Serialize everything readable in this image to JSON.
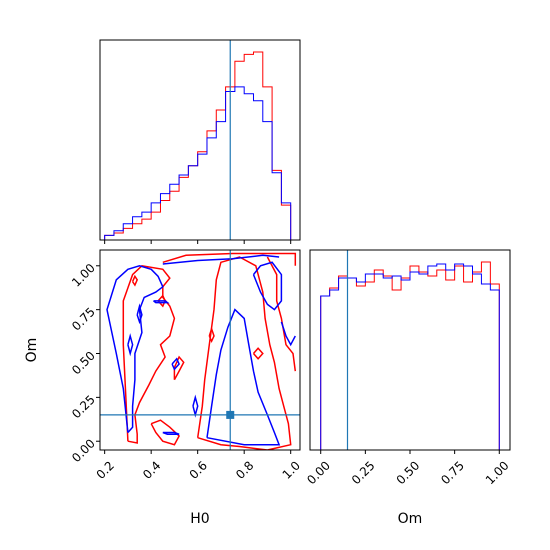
{
  "chart_data": {
    "type": "corner",
    "parameters": [
      "H0",
      "Om"
    ],
    "truths": {
      "H0": 0.74,
      "Om": 0.15
    },
    "colors": {
      "series_a": "#ff0000",
      "series_b": "#0000ff",
      "truth": "#1f77b4",
      "axes": "#000000"
    },
    "series": [
      {
        "color": "#ff0000",
        "hist_H0": {
          "edges": [
            0.2,
            0.24,
            0.28,
            0.32,
            0.36,
            0.4,
            0.44,
            0.48,
            0.52,
            0.56,
            0.6,
            0.64,
            0.68,
            0.72,
            0.76,
            0.8,
            0.84,
            0.88,
            0.92,
            0.96,
            1.0
          ],
          "counts": [
            2,
            3,
            5,
            7,
            9,
            12,
            17,
            21,
            27,
            32,
            38,
            47,
            56,
            66,
            77,
            80,
            81,
            66,
            30,
            15
          ]
        },
        "hist_Om": {
          "edges": [
            0.0,
            0.05,
            0.1,
            0.15,
            0.2,
            0.25,
            0.3,
            0.35,
            0.4,
            0.45,
            0.5,
            0.55,
            0.6,
            0.65,
            0.7,
            0.75,
            0.8,
            0.85,
            0.9,
            0.95,
            1.0
          ],
          "counts": [
            77,
            81,
            87,
            86,
            82,
            84,
            90,
            87,
            80,
            86,
            92,
            89,
            87,
            90,
            85,
            92,
            84,
            89,
            94,
            83
          ]
        }
      },
      {
        "color": "#0000ff",
        "hist_H0": {
          "edges": [
            0.2,
            0.24,
            0.28,
            0.32,
            0.36,
            0.4,
            0.44,
            0.48,
            0.52,
            0.56,
            0.6,
            0.64,
            0.68,
            0.72,
            0.76,
            0.8,
            0.84,
            0.88,
            0.92,
            0.96,
            1.0
          ],
          "counts": [
            2,
            4,
            7,
            10,
            12,
            16,
            20,
            24,
            28,
            32,
            37,
            44,
            51,
            64,
            66,
            63,
            60,
            51,
            29,
            16
          ]
        },
        "hist_Om": {
          "edges": [
            0.0,
            0.05,
            0.1,
            0.15,
            0.2,
            0.25,
            0.3,
            0.35,
            0.4,
            0.45,
            0.5,
            0.55,
            0.6,
            0.65,
            0.7,
            0.75,
            0.8,
            0.85,
            0.9,
            0.95,
            1.0
          ],
          "counts": [
            77,
            80,
            86,
            86,
            84,
            88,
            88,
            86,
            87,
            85,
            89,
            88,
            92,
            93,
            90,
            93,
            92,
            88,
            83,
            80
          ]
        }
      }
    ],
    "axes": {
      "H0": {
        "label": "H0",
        "range": [
          0.18,
          1.04
        ],
        "ticks": [
          0.2,
          0.4,
          0.6,
          0.8,
          1.0
        ],
        "tick_labels": [
          "0.2",
          "0.4",
          "0.6",
          "0.8",
          "1.0"
        ]
      },
      "Om": {
        "label": "Om",
        "range": [
          -0.05,
          1.09
        ],
        "ticks": [
          0.0,
          0.25,
          0.5,
          0.75,
          1.0
        ],
        "tick_labels": [
          "0.00",
          "0.25",
          "0.50",
          "0.75",
          "1.00"
        ]
      },
      "Om_hist_x": {
        "range": [
          -0.06,
          1.06
        ]
      }
    },
    "contours": [
      {
        "series": 0,
        "points": [
          [
            0.3,
            0.0
          ],
          [
            0.29,
            0.28
          ],
          [
            0.28,
            0.55
          ],
          [
            0.28,
            0.8
          ],
          [
            0.32,
            0.95
          ],
          [
            0.36,
            1.0
          ],
          [
            0.45,
            0.98
          ],
          [
            0.48,
            0.93
          ],
          [
            0.45,
            0.88
          ],
          [
            0.45,
            0.82
          ],
          [
            0.48,
            0.77
          ],
          [
            0.5,
            0.7
          ],
          [
            0.48,
            0.6
          ],
          [
            0.44,
            0.55
          ],
          [
            0.46,
            0.48
          ],
          [
            0.42,
            0.4
          ],
          [
            0.39,
            0.32
          ],
          [
            0.35,
            0.22
          ],
          [
            0.33,
            0.15
          ],
          [
            0.34,
            0.04
          ],
          [
            0.34,
            -0.01
          ],
          [
            0.3,
            0.0
          ]
        ]
      },
      {
        "series": 0,
        "points": [
          [
            0.45,
            1.02
          ],
          [
            0.55,
            1.06
          ],
          [
            0.75,
            1.07
          ],
          [
            0.88,
            1.07
          ],
          [
            0.95,
            1.07
          ],
          [
            1.02,
            1.07
          ],
          [
            1.02,
            1.0
          ]
        ]
      },
      {
        "series": 0,
        "points": [
          [
            0.6,
            0.02
          ],
          [
            0.62,
            0.2
          ],
          [
            0.63,
            0.35
          ],
          [
            0.65,
            0.55
          ],
          [
            0.67,
            0.75
          ],
          [
            0.68,
            0.92
          ],
          [
            0.7,
            1.02
          ],
          [
            0.78,
            1.05
          ],
          [
            0.85,
            1.0
          ],
          [
            0.88,
            0.85
          ],
          [
            0.89,
            0.7
          ],
          [
            0.91,
            0.55
          ],
          [
            0.93,
            0.45
          ],
          [
            0.95,
            0.3
          ],
          [
            0.97,
            0.2
          ],
          [
            0.99,
            0.1
          ],
          [
            1.0,
            -0.02
          ],
          [
            0.9,
            -0.05
          ],
          [
            0.78,
            -0.03
          ],
          [
            0.7,
            -0.02
          ],
          [
            0.6,
            0.02
          ]
        ]
      },
      {
        "series": 0,
        "points": [
          [
            0.9,
            1.05
          ],
          [
            0.94,
            0.95
          ],
          [
            0.94,
            0.8
          ],
          [
            0.96,
            0.7
          ],
          [
            0.98,
            0.55
          ],
          [
            1.01,
            0.5
          ],
          [
            1.02,
            0.4
          ]
        ]
      },
      {
        "series": 0,
        "points": [
          [
            0.4,
            0.1
          ],
          [
            0.42,
            0.05
          ],
          [
            0.45,
            0.0
          ],
          [
            0.5,
            -0.02
          ],
          [
            0.52,
            0.03
          ],
          [
            0.48,
            0.08
          ],
          [
            0.44,
            0.12
          ],
          [
            0.4,
            0.1
          ]
        ]
      },
      {
        "series": 0,
        "points": [
          [
            0.5,
            0.35
          ],
          [
            0.52,
            0.4
          ],
          [
            0.54,
            0.45
          ],
          [
            0.52,
            0.48
          ],
          [
            0.5,
            0.42
          ],
          [
            0.5,
            0.35
          ]
        ]
      },
      {
        "series": 0,
        "points": [
          [
            0.32,
            0.91
          ],
          [
            0.33,
            0.94
          ],
          [
            0.34,
            0.92
          ],
          [
            0.33,
            0.89
          ],
          [
            0.32,
            0.91
          ]
        ]
      },
      {
        "series": 0,
        "points": [
          [
            0.43,
            0.8
          ],
          [
            0.45,
            0.83
          ],
          [
            0.46,
            0.8
          ],
          [
            0.45,
            0.77
          ],
          [
            0.43,
            0.8
          ]
        ]
      },
      {
        "series": 0,
        "points": [
          [
            0.84,
            0.5
          ],
          [
            0.86,
            0.53
          ],
          [
            0.88,
            0.5
          ],
          [
            0.86,
            0.47
          ],
          [
            0.84,
            0.5
          ]
        ]
      },
      {
        "series": 0,
        "points": [
          [
            0.65,
            0.6
          ],
          [
            0.66,
            0.64
          ],
          [
            0.67,
            0.6
          ],
          [
            0.66,
            0.57
          ],
          [
            0.65,
            0.6
          ]
        ]
      },
      {
        "series": 1,
        "points": [
          [
            0.3,
            0.05
          ],
          [
            0.28,
            0.3
          ],
          [
            0.25,
            0.5
          ],
          [
            0.21,
            0.75
          ],
          [
            0.25,
            0.92
          ],
          [
            0.3,
            0.98
          ],
          [
            0.35,
            1.0
          ],
          [
            0.4,
            0.98
          ],
          [
            0.43,
            0.94
          ],
          [
            0.45,
            0.88
          ],
          [
            0.42,
            0.85
          ],
          [
            0.37,
            0.82
          ],
          [
            0.35,
            0.75
          ],
          [
            0.36,
            0.62
          ],
          [
            0.33,
            0.5
          ],
          [
            0.33,
            0.35
          ],
          [
            0.32,
            0.2
          ],
          [
            0.32,
            0.08
          ],
          [
            0.3,
            0.05
          ]
        ]
      },
      {
        "series": 1,
        "points": [
          [
            0.45,
            1.01
          ],
          [
            0.6,
            1.03
          ],
          [
            0.75,
            1.04
          ],
          [
            0.88,
            1.06
          ],
          [
            0.95,
            1.05
          ]
        ]
      },
      {
        "series": 1,
        "points": [
          [
            0.64,
            0.02
          ],
          [
            0.66,
            0.2
          ],
          [
            0.68,
            0.38
          ],
          [
            0.7,
            0.52
          ],
          [
            0.73,
            0.65
          ],
          [
            0.76,
            0.75
          ],
          [
            0.8,
            0.7
          ],
          [
            0.82,
            0.55
          ],
          [
            0.84,
            0.4
          ],
          [
            0.86,
            0.28
          ],
          [
            0.9,
            0.15
          ],
          [
            0.93,
            0.05
          ],
          [
            0.95,
            -0.02
          ],
          [
            0.8,
            -0.02
          ],
          [
            0.64,
            0.02
          ]
        ]
      },
      {
        "series": 1,
        "points": [
          [
            0.84,
            0.95
          ],
          [
            0.87,
            1.0
          ],
          [
            0.92,
            1.02
          ],
          [
            0.96,
            0.95
          ],
          [
            0.96,
            0.8
          ],
          [
            0.93,
            0.75
          ],
          [
            0.9,
            0.78
          ],
          [
            0.87,
            0.85
          ],
          [
            0.84,
            0.95
          ]
        ]
      },
      {
        "series": 1,
        "points": [
          [
            0.96,
            0.68
          ],
          [
            0.98,
            0.6
          ],
          [
            1.0,
            0.55
          ],
          [
            1.02,
            0.6
          ]
        ]
      },
      {
        "series": 1,
        "points": [
          [
            0.58,
            0.2
          ],
          [
            0.59,
            0.25
          ],
          [
            0.6,
            0.2
          ],
          [
            0.59,
            0.15
          ],
          [
            0.58,
            0.2
          ]
        ]
      },
      {
        "series": 1,
        "points": [
          [
            0.3,
            0.55
          ],
          [
            0.31,
            0.6
          ],
          [
            0.32,
            0.55
          ],
          [
            0.31,
            0.5
          ],
          [
            0.3,
            0.55
          ]
        ]
      },
      {
        "series": 1,
        "points": [
          [
            0.34,
            0.72
          ],
          [
            0.35,
            0.77
          ],
          [
            0.36,
            0.72
          ],
          [
            0.35,
            0.68
          ],
          [
            0.34,
            0.72
          ]
        ]
      },
      {
        "series": 1,
        "points": [
          [
            0.41,
            0.8
          ],
          [
            0.46,
            0.8
          ],
          [
            0.47,
            0.79
          ],
          [
            0.42,
            0.79
          ],
          [
            0.41,
            0.8
          ]
        ]
      },
      {
        "series": 1,
        "points": [
          [
            0.45,
            0.05
          ],
          [
            0.5,
            0.05
          ],
          [
            0.52,
            0.04
          ],
          [
            0.47,
            0.04
          ],
          [
            0.45,
            0.05
          ]
        ]
      },
      {
        "series": 1,
        "points": [
          [
            0.49,
            0.44
          ],
          [
            0.51,
            0.47
          ],
          [
            0.52,
            0.44
          ],
          [
            0.5,
            0.41
          ],
          [
            0.49,
            0.44
          ]
        ]
      }
    ]
  }
}
